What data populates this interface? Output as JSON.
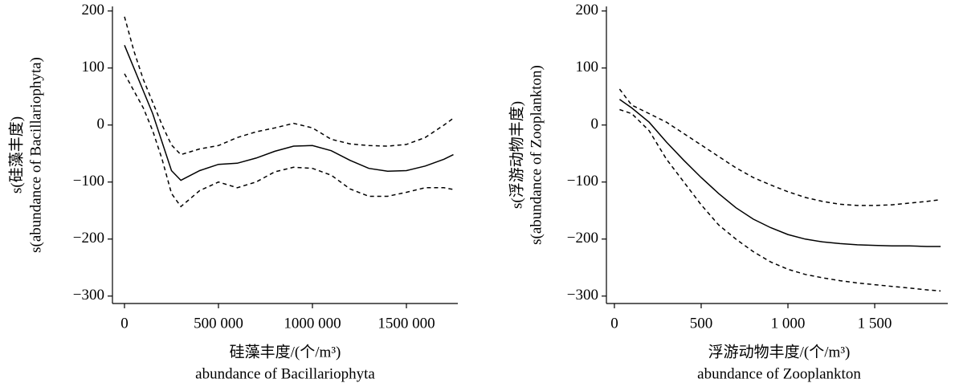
{
  "chart_data": [
    {
      "type": "line",
      "y_label": [
        "s(硅藻丰度)",
        "s(abundance of Bacillariophyta)"
      ],
      "x_label": [
        "硅藻丰度/(个/m³)",
        "abundance of Bacillariophyta"
      ],
      "x": [
        0,
        50000,
        100000,
        150000,
        200000,
        250000,
        300000,
        400000,
        500000,
        600000,
        700000,
        800000,
        900000,
        1000000,
        1100000,
        1200000,
        1300000,
        1400000,
        1500000,
        1600000,
        1700000,
        1750000
      ],
      "series": [
        {
          "color": "#000000",
          "dashed": false,
          "values": [
            140,
            100,
            60,
            20,
            -30,
            -80,
            -97,
            -80,
            -69,
            -67,
            -58,
            -46,
            -37,
            -36,
            -45,
            -62,
            -76,
            -81,
            -80,
            -72,
            -60,
            -52
          ]
        },
        {
          "color": "#000000",
          "dashed": true,
          "values": [
            190,
            130,
            80,
            40,
            0,
            -35,
            -52,
            -42,
            -36,
            -22,
            -12,
            -5,
            3,
            -5,
            -25,
            -33,
            -36,
            -37,
            -34,
            -22,
            0,
            12
          ]
        },
        {
          "color": "#000000",
          "dashed": true,
          "values": [
            90,
            60,
            30,
            -10,
            -60,
            -120,
            -143,
            -115,
            -100,
            -110,
            -100,
            -82,
            -74,
            -76,
            -88,
            -112,
            -125,
            -125,
            -118,
            -110,
            -110,
            -113
          ]
        }
      ],
      "xlim": [
        -64000,
        1773500
      ],
      "xticks": [
        0,
        {
          "value": 500000,
          "label": "500 000"
        },
        {
          "value": 1000000,
          "label": "1000 000"
        },
        {
          "value": 1500000,
          "label": "1500 000"
        }
      ],
      "ylim": [
        -313,
        208
      ],
      "yticks": [
        200,
        100,
        0,
        {
          "value": -100,
          "label": "−100"
        },
        {
          "value": -200,
          "label": "−200"
        },
        {
          "value": -300,
          "label": "−300"
        }
      ]
    },
    {
      "type": "line",
      "y_label": [
        "s(浮游动物丰度)",
        "s(abundance of Zooplankton)"
      ],
      "x_label": [
        "浮游动物丰度/(个/m³)",
        "abundance of Zooplankton"
      ],
      "x": [
        30,
        100,
        200,
        300,
        400,
        500,
        600,
        700,
        800,
        900,
        1000,
        1100,
        1200,
        1300,
        1400,
        1500,
        1600,
        1700,
        1800,
        1880
      ],
      "series": [
        {
          "color": "#000000",
          "dashed": false,
          "values": [
            45,
            30,
            5,
            -30,
            -62,
            -92,
            -120,
            -145,
            -165,
            -180,
            -192,
            -200,
            -205,
            -208,
            -210,
            -211,
            -212,
            -212,
            -213,
            -213
          ]
        },
        {
          "color": "#000000",
          "dashed": true,
          "values": [
            63,
            35,
            20,
            5,
            -15,
            -35,
            -55,
            -75,
            -92,
            -105,
            -117,
            -127,
            -134,
            -139,
            -141,
            -141,
            -140,
            -137,
            -134,
            -131
          ]
        },
        {
          "color": "#000000",
          "dashed": true,
          "values": [
            27,
            20,
            -10,
            -60,
            -100,
            -140,
            -175,
            -200,
            -222,
            -240,
            -253,
            -262,
            -268,
            -273,
            -277,
            -280,
            -283,
            -286,
            -289,
            -291
          ]
        }
      ],
      "xlim": [
        -46,
        1921
      ],
      "xticks": [
        0,
        500,
        {
          "value": 1000,
          "label": "1 000"
        },
        {
          "value": 1500,
          "label": "1 500"
        }
      ],
      "ylim": [
        -313,
        208
      ],
      "yticks": [
        200,
        100,
        0,
        {
          "value": -100,
          "label": "−100"
        },
        {
          "value": -200,
          "label": "−200"
        },
        {
          "value": -300,
          "label": "−300"
        }
      ]
    }
  ]
}
